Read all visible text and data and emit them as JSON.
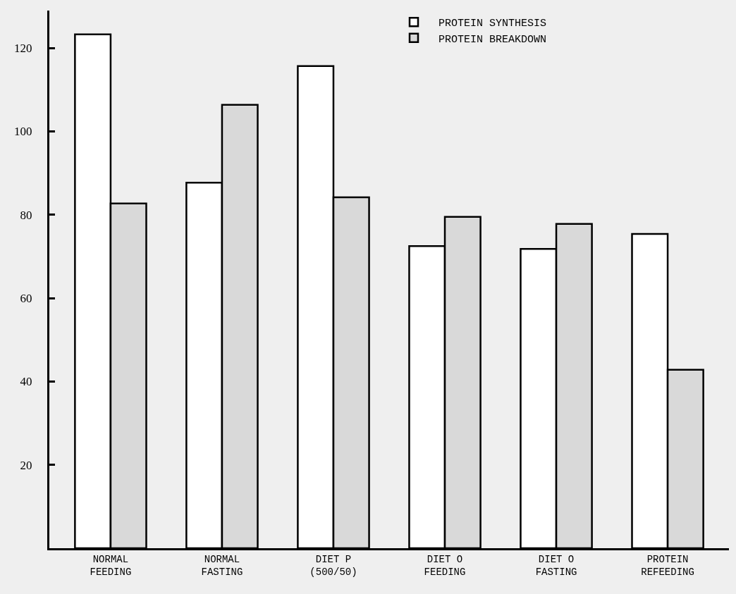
{
  "chart_data": {
    "type": "bar",
    "categories": [
      "NORMAL\nFEEDING",
      "NORMAL\nFASTING",
      "DIET P\n(500/50)",
      "DIET O\nFEEDING",
      "DIET O\nFASTING",
      "PROTEIN\nREFEEDING"
    ],
    "series": [
      {
        "name": "PROTEIN SYNTHESIS",
        "color": "#ffffff",
        "values": [
          123.3,
          87.7,
          115.7,
          72.5,
          71.8,
          75.4
        ]
      },
      {
        "name": "PROTEIN BREAKDOWN",
        "color": "#d9d9d9",
        "values": [
          82.7,
          106.4,
          84.2,
          79.5,
          77.8,
          42.8
        ]
      }
    ],
    "ylim": [
      0,
      129
    ],
    "yticks": [
      {
        "value": 0,
        "label": null
      },
      20,
      40,
      60,
      80,
      100,
      120
    ],
    "grid": false,
    "legend": "top right"
  }
}
